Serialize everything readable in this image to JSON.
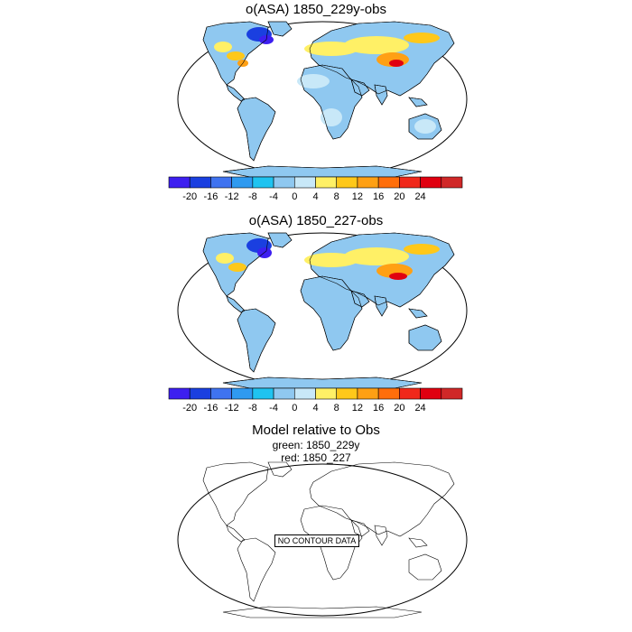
{
  "panels": [
    {
      "title": "o(ASA) 1850_229y-obs"
    },
    {
      "title": "o(ASA) 1850_227-obs"
    }
  ],
  "colorbar": {
    "colors": [
      "#3d1ff0",
      "#1a3fe0",
      "#3f73f0",
      "#2f9af0",
      "#1fc3f0",
      "#8fc8f0",
      "#c8e8f8",
      "#fff066",
      "#ffc81a",
      "#ffa014",
      "#ff6e0a",
      "#f0281a",
      "#e00010",
      "#d02828"
    ],
    "tick_labels": [
      "-20",
      "-16",
      "-12",
      "-8",
      "-4",
      "0",
      "4",
      "8",
      "12",
      "16",
      "20",
      "24"
    ]
  },
  "bottom_panel": {
    "title": "Model relative to Obs",
    "line1": "green: 1850_229y",
    "line2": "red: 1850_227",
    "no_data_label": "NO CONTOUR DATA"
  },
  "map_colors": {
    "ocean": "#ffffff",
    "land_base": "#8fc8f0",
    "land_light": "#c8e8f8",
    "warm_yellow": "#fff066",
    "warm_orange": "#ffa014",
    "warm_red": "#e00010",
    "cold_blue": "#1a3fe0"
  }
}
